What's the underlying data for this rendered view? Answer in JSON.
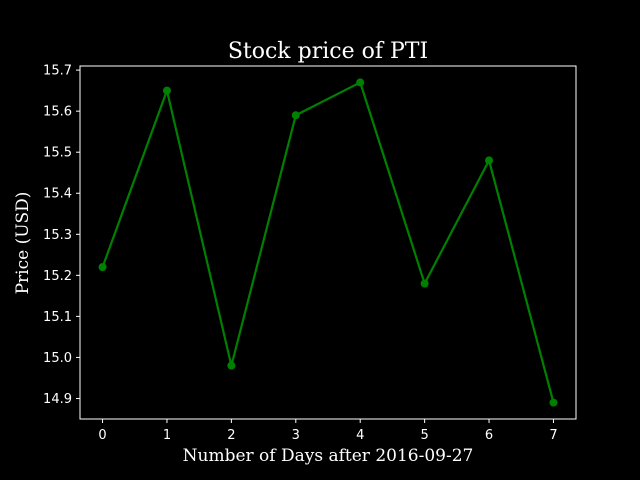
{
  "chart_data": {
    "type": "line",
    "title": "Stock price of PTI",
    "xlabel": "Number of Days after 2016-09-27",
    "ylabel": "Price (USD)",
    "x": [
      0,
      1,
      2,
      3,
      4,
      5,
      6,
      7
    ],
    "series": [
      {
        "values": [
          15.22,
          15.65,
          14.98,
          15.59,
          15.67,
          15.18,
          15.48,
          14.89
        ],
        "color": "#008000"
      }
    ],
    "xlim": [
      -0.35,
      7.35
    ],
    "ylim": [
      14.85,
      15.71
    ],
    "xticks": [
      0,
      1,
      2,
      3,
      4,
      5,
      6,
      7
    ],
    "xtick_labels": [
      "0",
      "1",
      "2",
      "3",
      "4",
      "5",
      "6",
      "7"
    ],
    "yticks": [
      14.9,
      15.0,
      15.1,
      15.2,
      15.3,
      15.4,
      15.5,
      15.6,
      15.7
    ],
    "ytick_labels": [
      "14.9",
      "15.0",
      "15.1",
      "15.2",
      "15.3",
      "15.4",
      "15.5",
      "15.6",
      "15.7"
    ],
    "grid": false,
    "legend": "none",
    "background_color": "#000000",
    "foreground_color": "#ffffff"
  }
}
